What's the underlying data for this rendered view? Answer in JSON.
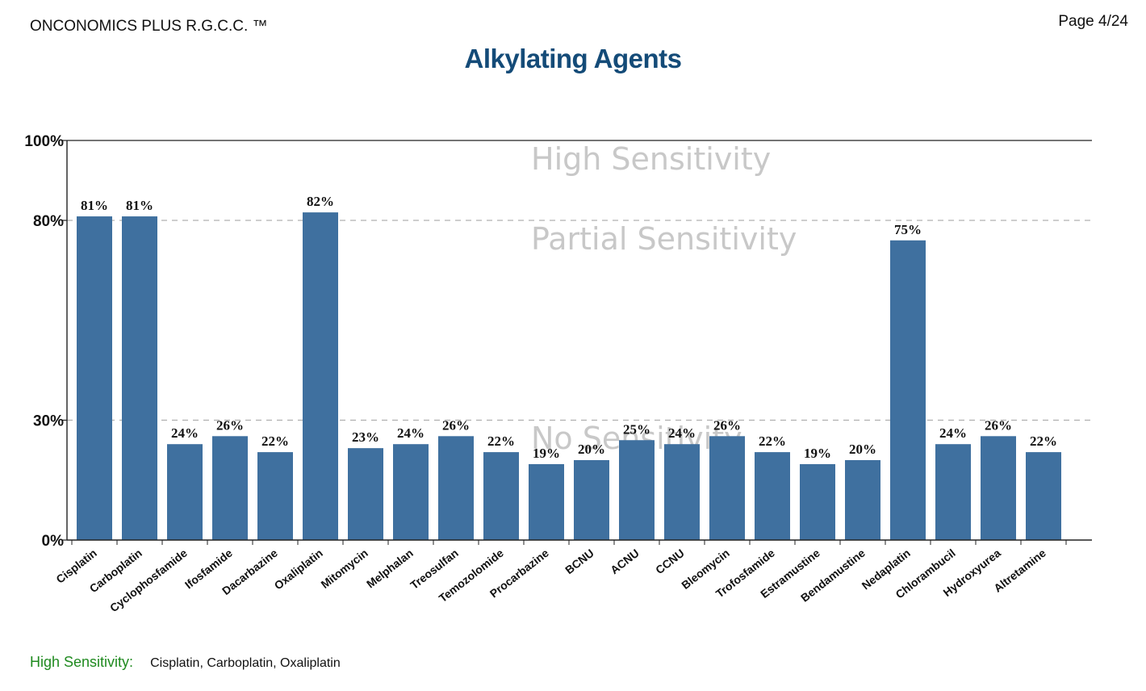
{
  "header": {
    "brand": "ONCONOMICS PLUS R.G.C.C. ™",
    "page": "Page 4/24"
  },
  "title": "Alkylating Agents",
  "footer": {
    "high_sensitivity_label": "High Sensitivity:",
    "high_sensitivity_drugs": "Cisplatin, Carboplatin, Oxaliplatin"
  },
  "colors": {
    "bar": "#3f709f",
    "title": "#144b78",
    "zone_text": "#c8c8c8",
    "high_label": "#1f8a1f"
  },
  "chart_data": {
    "type": "bar",
    "categories": [
      "Cisplatin",
      "Carboplatin",
      "Cyclophosfamide",
      "Ifosfamide",
      "Dacarbazine",
      "Oxaliplatin",
      "Mitomycin",
      "Melphalan",
      "Treosulfan",
      "Temozolomide",
      "Procarbazine",
      "BCNU",
      "ACNU",
      "CCNU",
      "Bleomycin",
      "Trofosfamide",
      "Estramustine",
      "Bendamustine",
      "Nedaplatin",
      "Chlorambucil",
      "Hydroxyurea",
      "Altretamine"
    ],
    "values": [
      81,
      81,
      24,
      26,
      22,
      82,
      23,
      24,
      26,
      22,
      19,
      20,
      25,
      24,
      26,
      22,
      19,
      20,
      75,
      24,
      26,
      22
    ],
    "value_suffix": "%",
    "ylim": [
      0,
      100
    ],
    "yticks": [
      {
        "value": 0,
        "label": "0%"
      },
      {
        "value": 30,
        "label": "30%"
      },
      {
        "value": 80,
        "label": "80%"
      },
      {
        "value": 100,
        "label": "100%"
      }
    ],
    "thresholds": [
      30,
      80
    ],
    "zones": [
      {
        "label": "High Sensitivity",
        "min": 80,
        "max": 100
      },
      {
        "label": "Partial Sensitivity",
        "min": 30,
        "max": 80
      },
      {
        "label": "No Sensitivity",
        "min": 0,
        "max": 30
      }
    ]
  }
}
